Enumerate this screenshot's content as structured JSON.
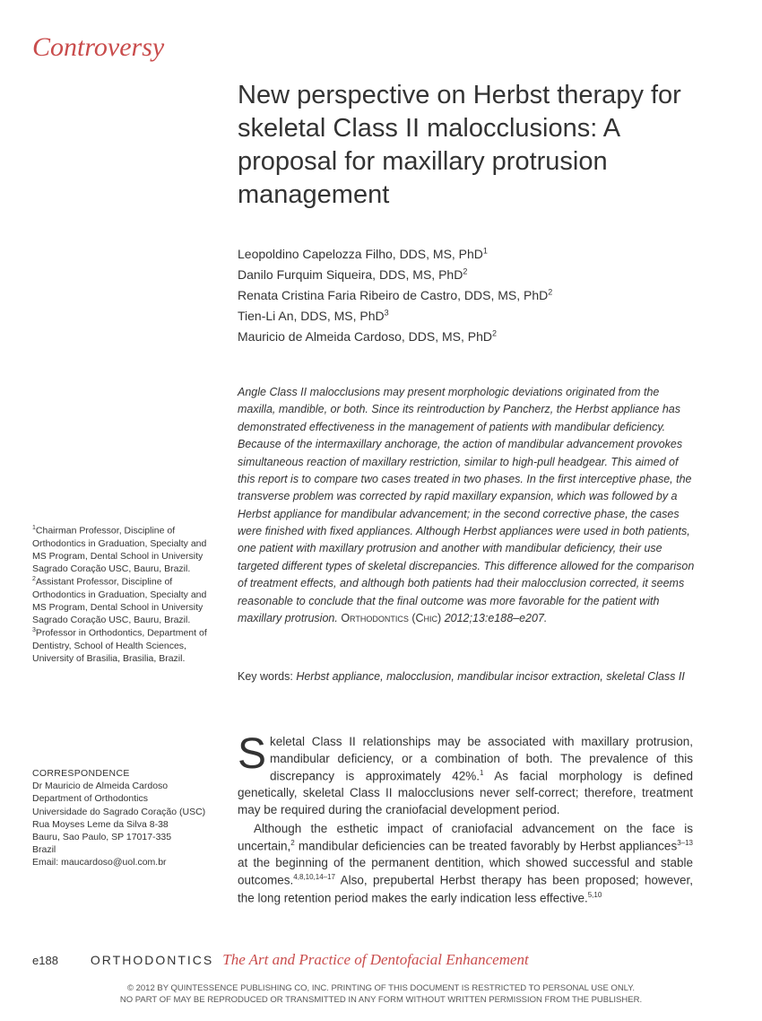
{
  "section_label": "Controversy",
  "title": "New perspective on Herbst therapy for skeletal Class II malocclusions: A proposal for maxillary protrusion management",
  "authors": [
    {
      "name": "Leopoldino Capelozza Filho, DDS, MS, PhD",
      "ref": "1"
    },
    {
      "name": "Danilo Furquim Siqueira, DDS, MS, PhD",
      "ref": "2"
    },
    {
      "name": "Renata Cristina Faria Ribeiro de Castro, DDS, MS, PhD",
      "ref": "2"
    },
    {
      "name": "Tien-Li An, DDS, MS, PhD",
      "ref": "3"
    },
    {
      "name": "Mauricio de Almeida Cardoso, DDS, MS, PhD",
      "ref": "2"
    }
  ],
  "abstract": "Angle Class II malocclusions may present morphologic deviations originated from the maxilla, mandible, or both. Since its reintroduction by Pancherz, the Herbst appliance has demonstrated effectiveness in the management of patients with mandibular deficiency. Because of the intermaxillary anchorage, the action of mandibular advancement provokes simultaneous reaction of maxillary restriction, similar to high-pull headgear. This aimed of this report is to compare two cases treated in two phases. In the first interceptive phase, the transverse problem was corrected by rapid maxillary expansion, which was followed by a Herbst appliance for mandibular advancement; in the second corrective phase, the cases were finished with fixed appliances. Although Herbst appliances were used in both patients, one patient with maxillary protrusion and another with mandibular deficiency, their use targeted different types of skeletal discrepancies. This difference allowed for the comparison of treatment effects, and although both patients had their malocclusion corrected, it seems reasonable to conclude that the final outcome was more favorable for the patient with maxillary protrusion.",
  "citation_journal": "Orthodontics (Chic)",
  "citation_ref": " 2012;13:e188–e207.",
  "keywords_label": "Key words: ",
  "keywords_text": "Herbst appliance, malocclusion, mandibular incisor extraction, skeletal Class II",
  "body_p1": "keletal Class II relationships may be associated with maxillary protrusion, mandibular deficiency, or a combination of both. The prevalence of this discrepancy is approximately 42%.",
  "body_p1_cont": " As facial morphology is defined genetically, skeletal Class II malocclusions never self-correct; therefore, treatment may be required during the craniofacial development period.",
  "body_p2a": "Although the esthetic impact of craniofacial advancement on the face is uncertain,",
  "body_p2b": " mandibular deficiencies can be treated favorably by Herbst appliances",
  "body_p2c": " at the beginning of the permanent dentition, which showed successful and stable outcomes.",
  "body_p2d": " Also, prepubertal Herbst therapy has been proposed; however, the long retention period makes the early indication less effective.",
  "refs": {
    "r1": "1",
    "r2": "2",
    "r3_13": "3–13",
    "r4_8_10_14_17": "4,8,10,14–17",
    "r5_10": "5,10"
  },
  "affiliations": [
    {
      "ref": "1",
      "text": "Chairman Professor, Discipline of Orthodontics in Graduation, Specialty and MS Program, Dental School in University Sagrado Coração USC, Bauru, Brazil."
    },
    {
      "ref": "2",
      "text": "Assistant Professor, Discipline of Orthodontics in Graduation, Specialty and MS Program, Dental School in University Sagrado Coração USC, Bauru, Brazil."
    },
    {
      "ref": "3",
      "text": "Professor in Orthodontics, Department of Dentistry, School of Health Sciences, University of Brasilia, Brasilia, Brazil."
    }
  ],
  "correspondence": {
    "label": "CORRESPONDENCE",
    "lines": [
      "Dr Mauricio de Almeida Cardoso",
      "Department of Orthodontics",
      "Universidade do Sagrado Coração (USC)",
      "Rua Moyses Leme da Silva 8-38",
      "Bauru, Sao Paulo, SP 17017-335",
      "Brazil",
      "Email: maucardoso@uol.com.br"
    ]
  },
  "footer": {
    "page": "e188",
    "journal": "ORTHODONTICS",
    "tagline": "The Art and Practice of Dentofacial Enhancement"
  },
  "copyright_l1": "© 2012 BY QUINTESSENCE PUBLISHING CO, INC. PRINTING OF THIS DOCUMENT IS RESTRICTED TO PERSONAL USE ONLY.",
  "copyright_l2": "NO PART OF MAY BE REPRODUCED OR TRANSMITTED IN ANY FORM WITHOUT WRITTEN PERMISSION FROM THE PUBLISHER."
}
